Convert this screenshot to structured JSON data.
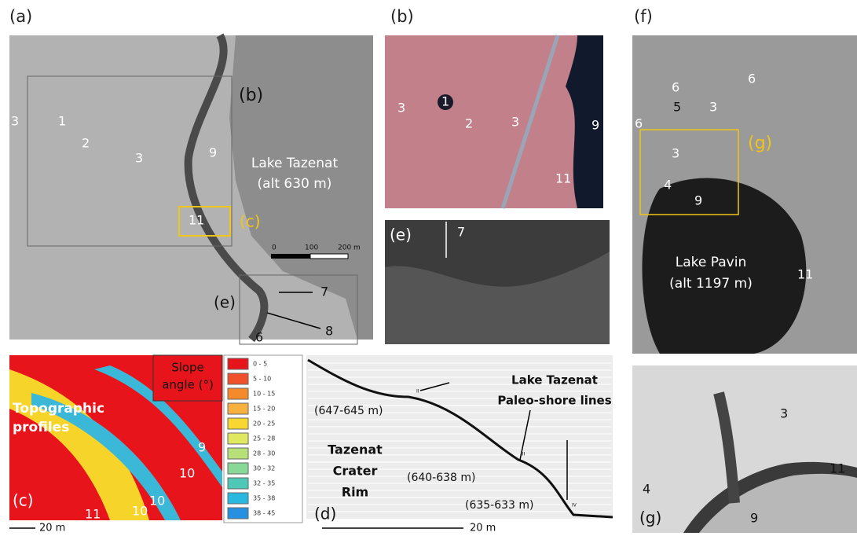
{
  "panels": {
    "a": {
      "label": "(a)",
      "texts": [
        "3",
        "1",
        "2",
        "3",
        "(b)",
        "9",
        "Lake Tazenat",
        "(alt 630 m)",
        "11",
        "(c)",
        "(e)",
        "7",
        "8",
        "6"
      ],
      "scale": [
        "0",
        "100",
        "200 m"
      ]
    },
    "b": {
      "label": "(b)",
      "texts": [
        "1",
        "3",
        "2",
        "3",
        "9",
        "11"
      ]
    },
    "e": {
      "texts": [
        "(e)",
        "7"
      ]
    },
    "f": {
      "label": "(f)",
      "texts": [
        "6",
        "6",
        "5",
        "3",
        "6",
        "(g)",
        "3",
        "4",
        "9",
        "Lake Pavin",
        "(alt 1197 m)",
        "11"
      ]
    },
    "g": {
      "texts": [
        "3",
        "11",
        "4",
        "9",
        "(g)"
      ]
    },
    "c": {
      "texts": [
        "Slope",
        "angle (°)",
        "Topographic",
        "profiles",
        "9",
        "10",
        "10",
        "10",
        "11",
        "(c)"
      ],
      "scale": "20 m",
      "legend": [
        "0 - 5",
        "5 - 10",
        "10 - 15",
        "15 - 20",
        "20 - 25",
        "25 - 28",
        "28 - 30",
        "30 - 32",
        "32 - 35",
        "35 - 38",
        "38 - 45"
      ]
    },
    "d": {
      "texts": [
        "Lake Tazenat",
        "Paleo-shore lines",
        "Tazenat",
        "Crater",
        "Rim",
        "(647-645 m)",
        "(640-638 m)",
        "(635-633 m)",
        "(d)",
        "II",
        "III",
        "IV"
      ],
      "scale": "20 m"
    }
  }
}
